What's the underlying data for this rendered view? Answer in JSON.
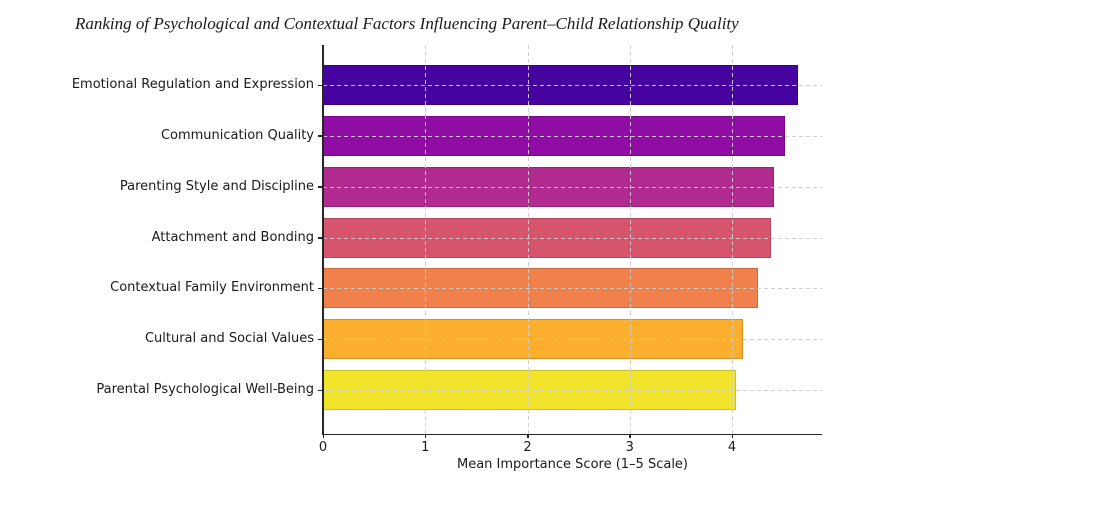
{
  "chart_data": {
    "type": "bar",
    "orientation": "horizontal",
    "title": "Ranking of Psychological and Contextual Factors Influencing Parent–Child Relationship Quality",
    "categories": [
      "Emotional Regulation and Expression",
      "Communication Quality",
      "Parenting Style and Discipline",
      "Attachment and Bonding",
      "Contextual Family Environment",
      "Cultural and Social Values",
      "Parental Psychological Well-Being"
    ],
    "values": [
      4.65,
      4.52,
      4.41,
      4.38,
      4.25,
      4.11,
      4.04
    ],
    "bar_colors": [
      "#46039f",
      "#8f0da4",
      "#b12a90",
      "#d6556d",
      "#f0804c",
      "#fcae2f",
      "#f2e32b"
    ],
    "xlabel": "Mean Importance Score (1–5 Scale)",
    "ylabel": "",
    "xlim": [
      0,
      4.88
    ],
    "x_ticks": [
      0,
      1,
      2,
      3,
      4
    ],
    "grid": {
      "axis": "both",
      "linestyle": "dashed",
      "on_top_of_bars": true
    },
    "legend": null
  },
  "colors": {
    "background": "#ffffff",
    "axis_spine": "#262626",
    "gridline": "#cdcdcd",
    "text": "#1a1a1a",
    "bar_edge": "rgba(0,0,0,0.16)"
  }
}
